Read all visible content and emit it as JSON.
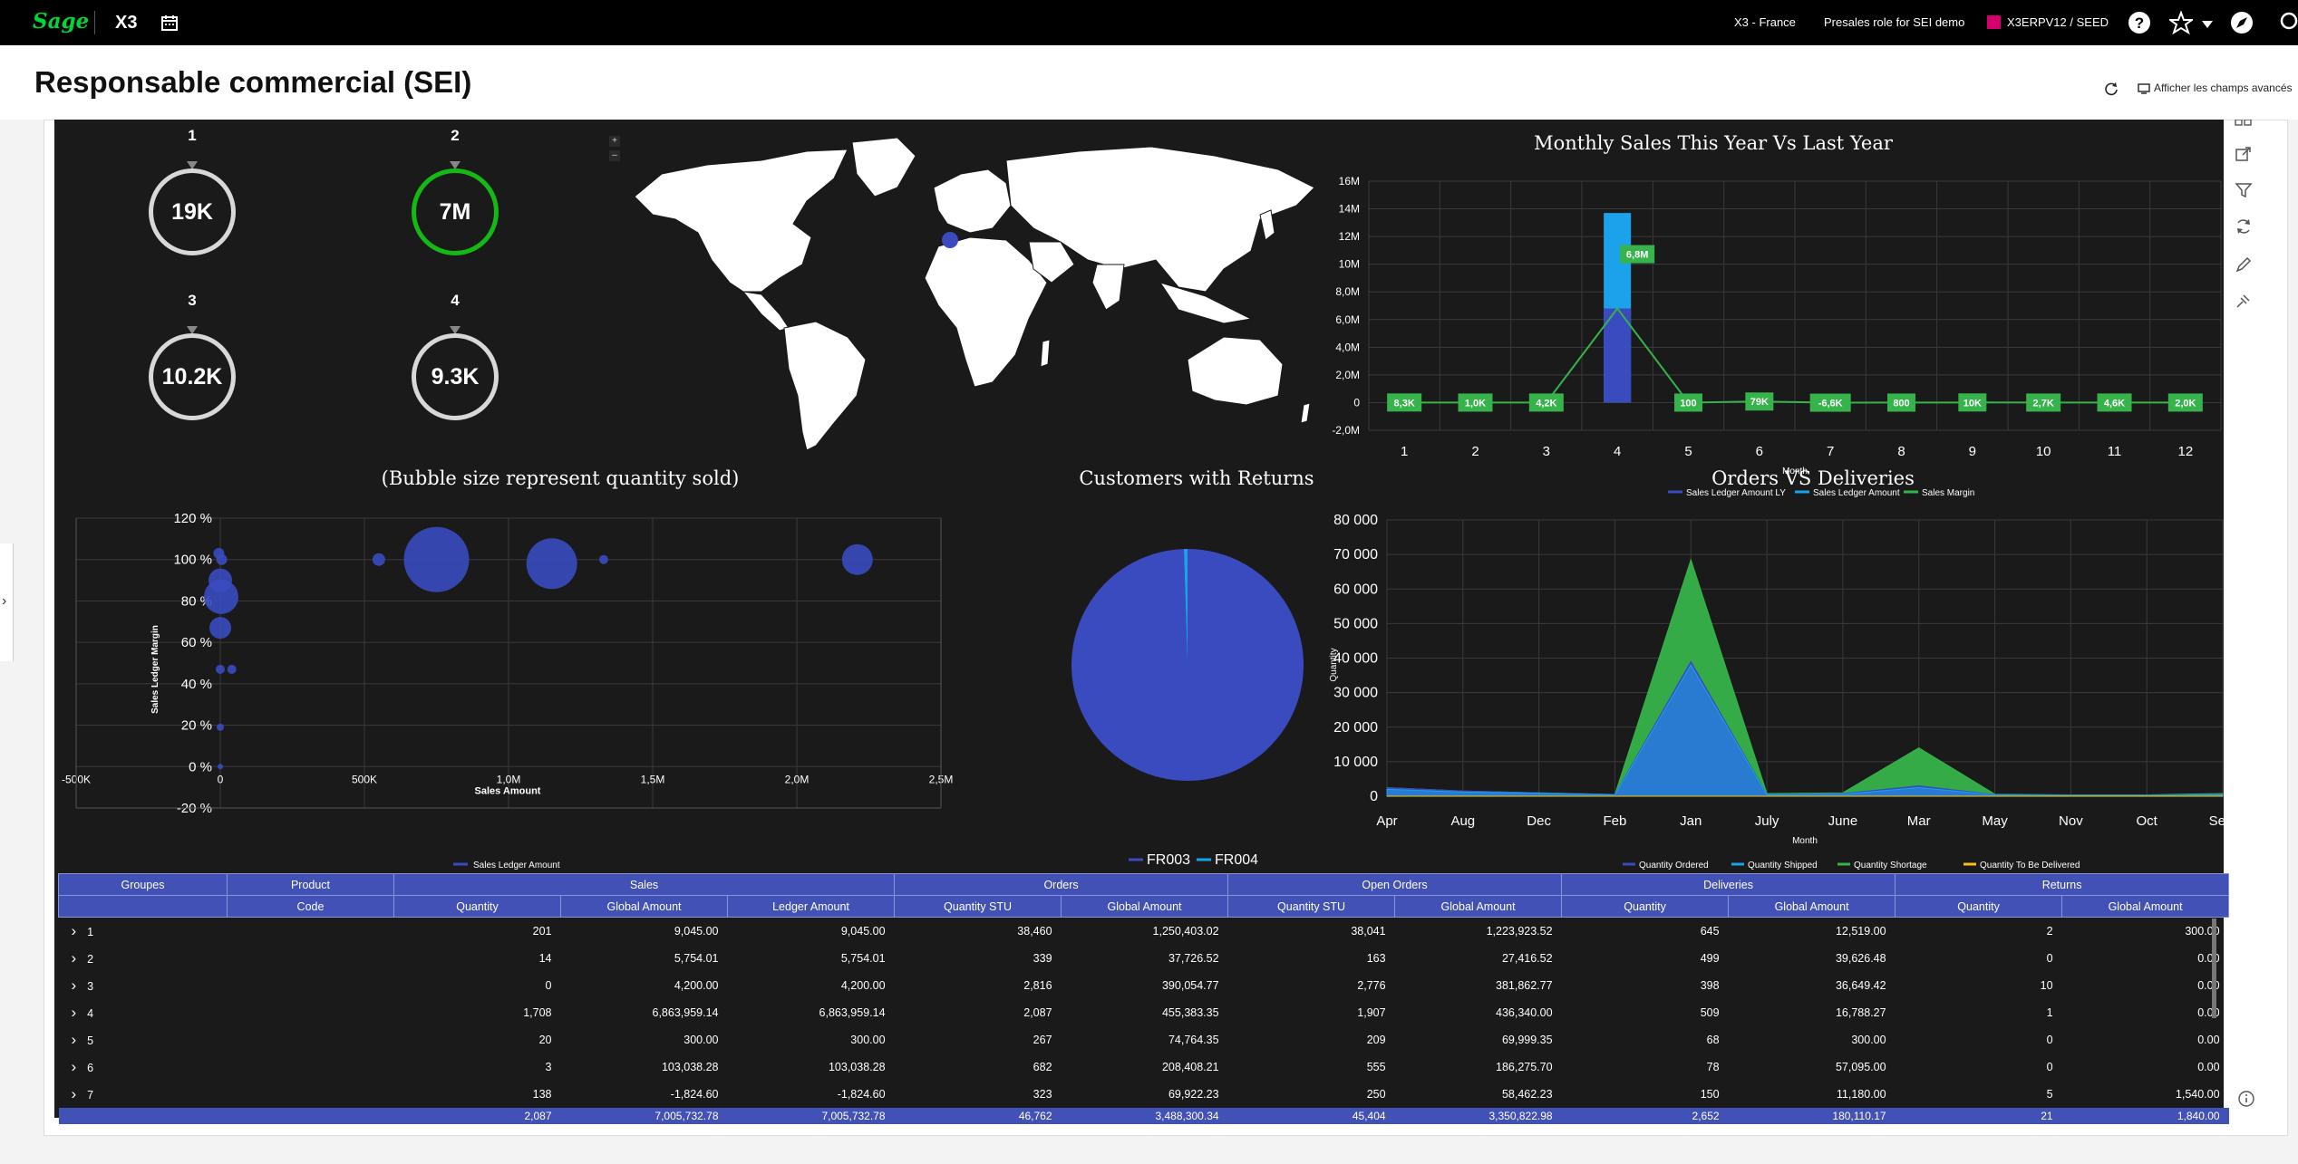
{
  "topbar": {
    "logo": "Sage",
    "product": "X3",
    "company": "X3 - France",
    "role": "Presales role for SEI demo",
    "endpoint": "X3ERPV12 / SEED",
    "icons": [
      "calendar-icon",
      "help-icon",
      "star-icon",
      "chevron-down-icon",
      "compass-icon",
      "search-icon"
    ]
  },
  "header": {
    "title": "Responsable commercial (SEI)",
    "advanced_fields": "Afficher les champs avancés"
  },
  "kpis": [
    {
      "index": "1",
      "value": "19K",
      "ring_color": "#d8d8d8"
    },
    {
      "index": "2",
      "value": "7M",
      "ring_color": "#14b914"
    },
    {
      "index": "3",
      "value": "10.2K",
      "ring_color": "#d8d8d8"
    },
    {
      "index": "4",
      "value": "9.3K",
      "ring_color": "#d8d8d8"
    }
  ],
  "map": {
    "zoom_in": "+",
    "zoom_out": "–",
    "highlight_color": "#3a4bc0"
  },
  "monthly": {
    "title": "Monthly Sales This Year Vs Last Year",
    "xlabel": "Month",
    "y_ticks": [
      "16M",
      "14M",
      "12M",
      "10M",
      "8,0M",
      "6,0M",
      "4,0M",
      "2,0M",
      "0",
      "-2,0M"
    ],
    "legend": [
      "Sales Ledger Amount LY",
      "Sales Ledger Amount",
      "Sales Margin"
    ],
    "margin_labels": [
      "8,3K",
      "1,0K",
      "4,2K",
      "6,8M",
      "100",
      "79K",
      "-6,6K",
      "800",
      "10K",
      "2,7K",
      "4,6K",
      "2,0K"
    ]
  },
  "bubble": {
    "title": "(Bubble size represent quantity sold)",
    "xlabel": "Sales Amount",
    "ylabel": "Sales Ledger Margin",
    "x_ticks": [
      "-500K",
      "0",
      "500K",
      "1,0M",
      "1,5M",
      "2,0M",
      "2,5M"
    ],
    "y_ticks": [
      "120 %",
      "100 %",
      "80 %",
      "60 %",
      "40 %",
      "20 %",
      "0 %",
      "-20 %"
    ],
    "legend": "Sales Ledger Amount"
  },
  "returns": {
    "title": "Customers with Returns",
    "legend": [
      "FR003",
      "FR004"
    ]
  },
  "orders": {
    "title": "Orders VS Deliveries",
    "xlabel": "Month",
    "ylabel": "Quantity",
    "y_ticks": [
      "80 000",
      "70 000",
      "60 000",
      "50 000",
      "40 000",
      "30 000",
      "20 000",
      "10 000",
      "0"
    ],
    "legend": [
      "Quantity Ordered",
      "Quantity Shipped",
      "Quantity Shortage",
      "Quantity To Be Delivered"
    ]
  },
  "chart_data": [
    {
      "type": "bar",
      "title": "Monthly Sales This Year Vs Last Year",
      "xlabel": "Month",
      "categories": [
        1,
        2,
        3,
        4,
        5,
        6,
        7,
        8,
        9,
        10,
        11,
        12
      ],
      "ylim": [
        -2000000,
        16000000
      ],
      "series": [
        {
          "name": "Sales Ledger Amount LY",
          "type": "bar",
          "color": "#3a4bc0",
          "values": [
            30000,
            20000,
            25000,
            6800000,
            5000,
            80000,
            10000,
            5000,
            20000,
            10000,
            10000,
            5000
          ]
        },
        {
          "name": "Sales Ledger Amount",
          "type": "bar",
          "color": "#1aa3ea",
          "values": [
            40000,
            30000,
            35000,
            13700000,
            8000,
            120000,
            20000,
            8000,
            30000,
            15000,
            15000,
            8000
          ]
        },
        {
          "name": "Sales Margin",
          "type": "line",
          "color": "#36b34a",
          "values": [
            8300,
            1000,
            4200,
            6800000,
            100,
            79000,
            -6600,
            800,
            10000,
            2700,
            4600,
            2000
          ]
        }
      ],
      "grid": true,
      "legend_position": "bottom"
    },
    {
      "type": "scatter",
      "title": "(Bubble size represent quantity sold)",
      "xlabel": "Sales Amount",
      "ylabel": "Sales Ledger Margin",
      "xlim": [
        -500000,
        2500000
      ],
      "ylim": [
        -20,
        120
      ],
      "series": [
        {
          "name": "Sales Ledger Amount",
          "color": "#3a4bc0",
          "points": [
            {
              "x": -5000,
              "y": 103,
              "size": 6
            },
            {
              "x": 5000,
              "y": 100,
              "size": 6
            },
            {
              "x": 0,
              "y": 90,
              "size": 13
            },
            {
              "x": 3000,
              "y": 82,
              "size": 19
            },
            {
              "x": 0,
              "y": 67,
              "size": 12
            },
            {
              "x": 0,
              "y": 47,
              "size": 5
            },
            {
              "x": 40000,
              "y": 47,
              "size": 5
            },
            {
              "x": 0,
              "y": 19,
              "size": 4
            },
            {
              "x": 0,
              "y": 0,
              "size": 3
            },
            {
              "x": 550000,
              "y": 100,
              "size": 7
            },
            {
              "x": 750000,
              "y": 100,
              "size": 36
            },
            {
              "x": 1150000,
              "y": 98,
              "size": 28
            },
            {
              "x": 1330000,
              "y": 100,
              "size": 5
            },
            {
              "x": 2210000,
              "y": 100,
              "size": 17
            }
          ]
        }
      ],
      "grid": true,
      "legend_position": "bottom"
    },
    {
      "type": "pie",
      "title": "Customers with Returns",
      "categories": [
        "FR003",
        "FR004"
      ],
      "values": [
        99.5,
        0.5
      ],
      "colors": [
        "#3a4bc0",
        "#1aa3ea"
      ],
      "legend_position": "bottom"
    },
    {
      "type": "area",
      "title": "Orders VS Deliveries",
      "xlabel": "Month",
      "ylabel": "Quantity",
      "categories": [
        "Apr",
        "Aug",
        "Dec",
        "Feb",
        "Jan",
        "July",
        "June",
        "Mar",
        "May",
        "Nov",
        "Oct",
        "Sept"
      ],
      "ylim": [
        0,
        80000
      ],
      "series": [
        {
          "name": "Quantity Ordered",
          "color": "#3a4bc0",
          "values": [
            2500,
            1500,
            1000,
            500,
            39000,
            500,
            800,
            3000,
            500,
            300,
            300,
            500
          ]
        },
        {
          "name": "Quantity Shipped",
          "color": "#1aa3ea",
          "values": [
            2000,
            1200,
            900,
            400,
            38000,
            400,
            600,
            2500,
            400,
            200,
            200,
            400
          ]
        },
        {
          "name": "Quantity Shortage",
          "color": "#36b34a",
          "values": [
            2500,
            1500,
            1000,
            500,
            68500,
            800,
            1000,
            14000,
            600,
            400,
            400,
            800
          ]
        },
        {
          "name": "Quantity To Be Delivered",
          "color": "#f0c419",
          "values": [
            0,
            0,
            0,
            0,
            0,
            0,
            0,
            0,
            0,
            0,
            0,
            0
          ]
        }
      ],
      "grid": true,
      "legend_position": "bottom"
    }
  ],
  "table": {
    "group_headers": [
      {
        "label": "Groupes",
        "span": 1
      },
      {
        "label": "Product",
        "span": 1
      },
      {
        "label": "Sales",
        "span": 3
      },
      {
        "label": "Orders",
        "span": 2
      },
      {
        "label": "Open Orders",
        "span": 2
      },
      {
        "label": "Deliveries",
        "span": 2
      },
      {
        "label": "Returns",
        "span": 2
      }
    ],
    "sub_headers": [
      "",
      "Code",
      "Quantity",
      "Global Amount",
      "Ledger Amount",
      "Quantity STU",
      "Global Amount",
      "Quantity STU",
      "Global Amount",
      "Quantity",
      "Global Amount",
      "Quantity",
      "Global Amount"
    ],
    "rows": [
      {
        "group": "1",
        "cells": [
          "",
          "201",
          "9,045.00",
          "9,045.00",
          "38,460",
          "1,250,403.02",
          "38,041",
          "1,223,923.52",
          "645",
          "12,519.00",
          "2",
          "300.00"
        ]
      },
      {
        "group": "2",
        "cells": [
          "",
          "14",
          "5,754.01",
          "5,754.01",
          "339",
          "37,726.52",
          "163",
          "27,416.52",
          "499",
          "39,626.48",
          "0",
          "0.00"
        ]
      },
      {
        "group": "3",
        "cells": [
          "",
          "0",
          "4,200.00",
          "4,200.00",
          "2,816",
          "390,054.77",
          "2,776",
          "381,862.77",
          "398",
          "36,649.42",
          "10",
          "0.00"
        ]
      },
      {
        "group": "4",
        "cells": [
          "",
          "1,708",
          "6,863,959.14",
          "6,863,959.14",
          "2,087",
          "455,383.35",
          "1,907",
          "436,340.00",
          "509",
          "16,788.27",
          "1",
          "0.00"
        ]
      },
      {
        "group": "5",
        "cells": [
          "",
          "20",
          "300.00",
          "300.00",
          "267",
          "74,764.35",
          "209",
          "69,999.35",
          "68",
          "300.00",
          "0",
          "0.00"
        ]
      },
      {
        "group": "6",
        "cells": [
          "",
          "3",
          "103,038.28",
          "103,038.28",
          "682",
          "208,408.21",
          "555",
          "186,275.70",
          "78",
          "57,095.00",
          "0",
          "0.00"
        ]
      },
      {
        "group": "7",
        "cells": [
          "",
          "138",
          "-1,824.60",
          "-1,824.60",
          "323",
          "69,922.23",
          "250",
          "58,462.23",
          "150",
          "11,180.00",
          "5",
          "1,540.00"
        ]
      }
    ],
    "totals": [
      "",
      "",
      "2,087",
      "7,005,732.78",
      "7,005,732.78",
      "46,762",
      "3,488,300.34",
      "45,404",
      "3,350,822.98",
      "2,652",
      "180,110.17",
      "21",
      "1,840.00"
    ]
  }
}
